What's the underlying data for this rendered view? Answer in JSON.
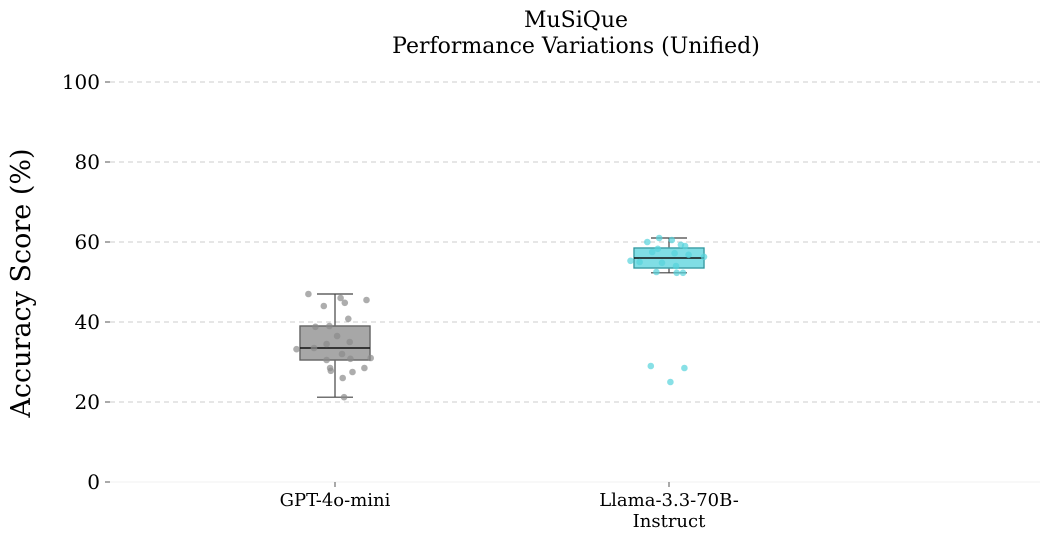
{
  "chart_data": {
    "type": "box",
    "title": "MuSiQue",
    "subtitle": "Performance Variations (Unified)",
    "ylabel": "Accuracy Score (%)",
    "xlabel": "",
    "ylim": [
      0,
      100
    ],
    "yticks": [
      0,
      20,
      40,
      60,
      80,
      100
    ],
    "grid": "y",
    "categories": [
      {
        "label_lines": [
          "GPT-4o-mini"
        ],
        "color": "#8a8a8a",
        "box": {
          "whisker_low": 21.2,
          "q1": 30.5,
          "median": 33.5,
          "q3": 39.0,
          "whisker_high": 47.0
        },
        "points": [
          {
            "jitter": -0.38,
            "value": 47.0
          },
          {
            "jitter": 0.08,
            "value": 46.0
          },
          {
            "jitter": 0.45,
            "value": 45.5
          },
          {
            "jitter": 0.14,
            "value": 44.8
          },
          {
            "jitter": -0.16,
            "value": 44.0
          },
          {
            "jitter": 0.19,
            "value": 40.8
          },
          {
            "jitter": -0.28,
            "value": 38.8
          },
          {
            "jitter": -0.08,
            "value": 39.0
          },
          {
            "jitter": 0.03,
            "value": 36.5
          },
          {
            "jitter": 0.21,
            "value": 35.0
          },
          {
            "jitter": -0.12,
            "value": 34.5
          },
          {
            "jitter": -0.55,
            "value": 33.2
          },
          {
            "jitter": -0.3,
            "value": 33.5
          },
          {
            "jitter": 0.1,
            "value": 32.0
          },
          {
            "jitter": -0.12,
            "value": 30.5
          },
          {
            "jitter": 0.22,
            "value": 30.8
          },
          {
            "jitter": 0.51,
            "value": 31.0
          },
          {
            "jitter": -0.07,
            "value": 28.5
          },
          {
            "jitter": -0.06,
            "value": 27.8
          },
          {
            "jitter": 0.42,
            "value": 28.5
          },
          {
            "jitter": 0.25,
            "value": 27.5
          },
          {
            "jitter": 0.11,
            "value": 26.0
          },
          {
            "jitter": 0.13,
            "value": 21.2
          }
        ]
      },
      {
        "label_lines": [
          "Llama-3.3-70B-",
          "Instruct"
        ],
        "color": "#56d3dc",
        "box": {
          "whisker_low": 52.3,
          "q1": 53.5,
          "median": 56.0,
          "q3": 58.5,
          "whisker_high": 61.0
        },
        "points": [
          {
            "jitter": -0.14,
            "value": 61.0
          },
          {
            "jitter": 0.04,
            "value": 60.5
          },
          {
            "jitter": -0.31,
            "value": 60.0
          },
          {
            "jitter": 0.17,
            "value": 59.3
          },
          {
            "jitter": 0.23,
            "value": 59.0
          },
          {
            "jitter": -0.16,
            "value": 58.3
          },
          {
            "jitter": -0.24,
            "value": 57.5
          },
          {
            "jitter": 0.08,
            "value": 57.2
          },
          {
            "jitter": 0.28,
            "value": 56.8
          },
          {
            "jitter": 0.5,
            "value": 56.3
          },
          {
            "jitter": -0.55,
            "value": 55.3
          },
          {
            "jitter": -0.42,
            "value": 55.0
          },
          {
            "jitter": -0.1,
            "value": 54.8
          },
          {
            "jitter": 0.1,
            "value": 54.0
          },
          {
            "jitter": -0.18,
            "value": 52.5
          },
          {
            "jitter": 0.11,
            "value": 52.3
          },
          {
            "jitter": 0.2,
            "value": 52.3
          },
          {
            "jitter": -0.26,
            "value": 29.0
          },
          {
            "jitter": 0.22,
            "value": 28.5
          },
          {
            "jitter": 0.02,
            "value": 25.0
          }
        ]
      }
    ]
  }
}
